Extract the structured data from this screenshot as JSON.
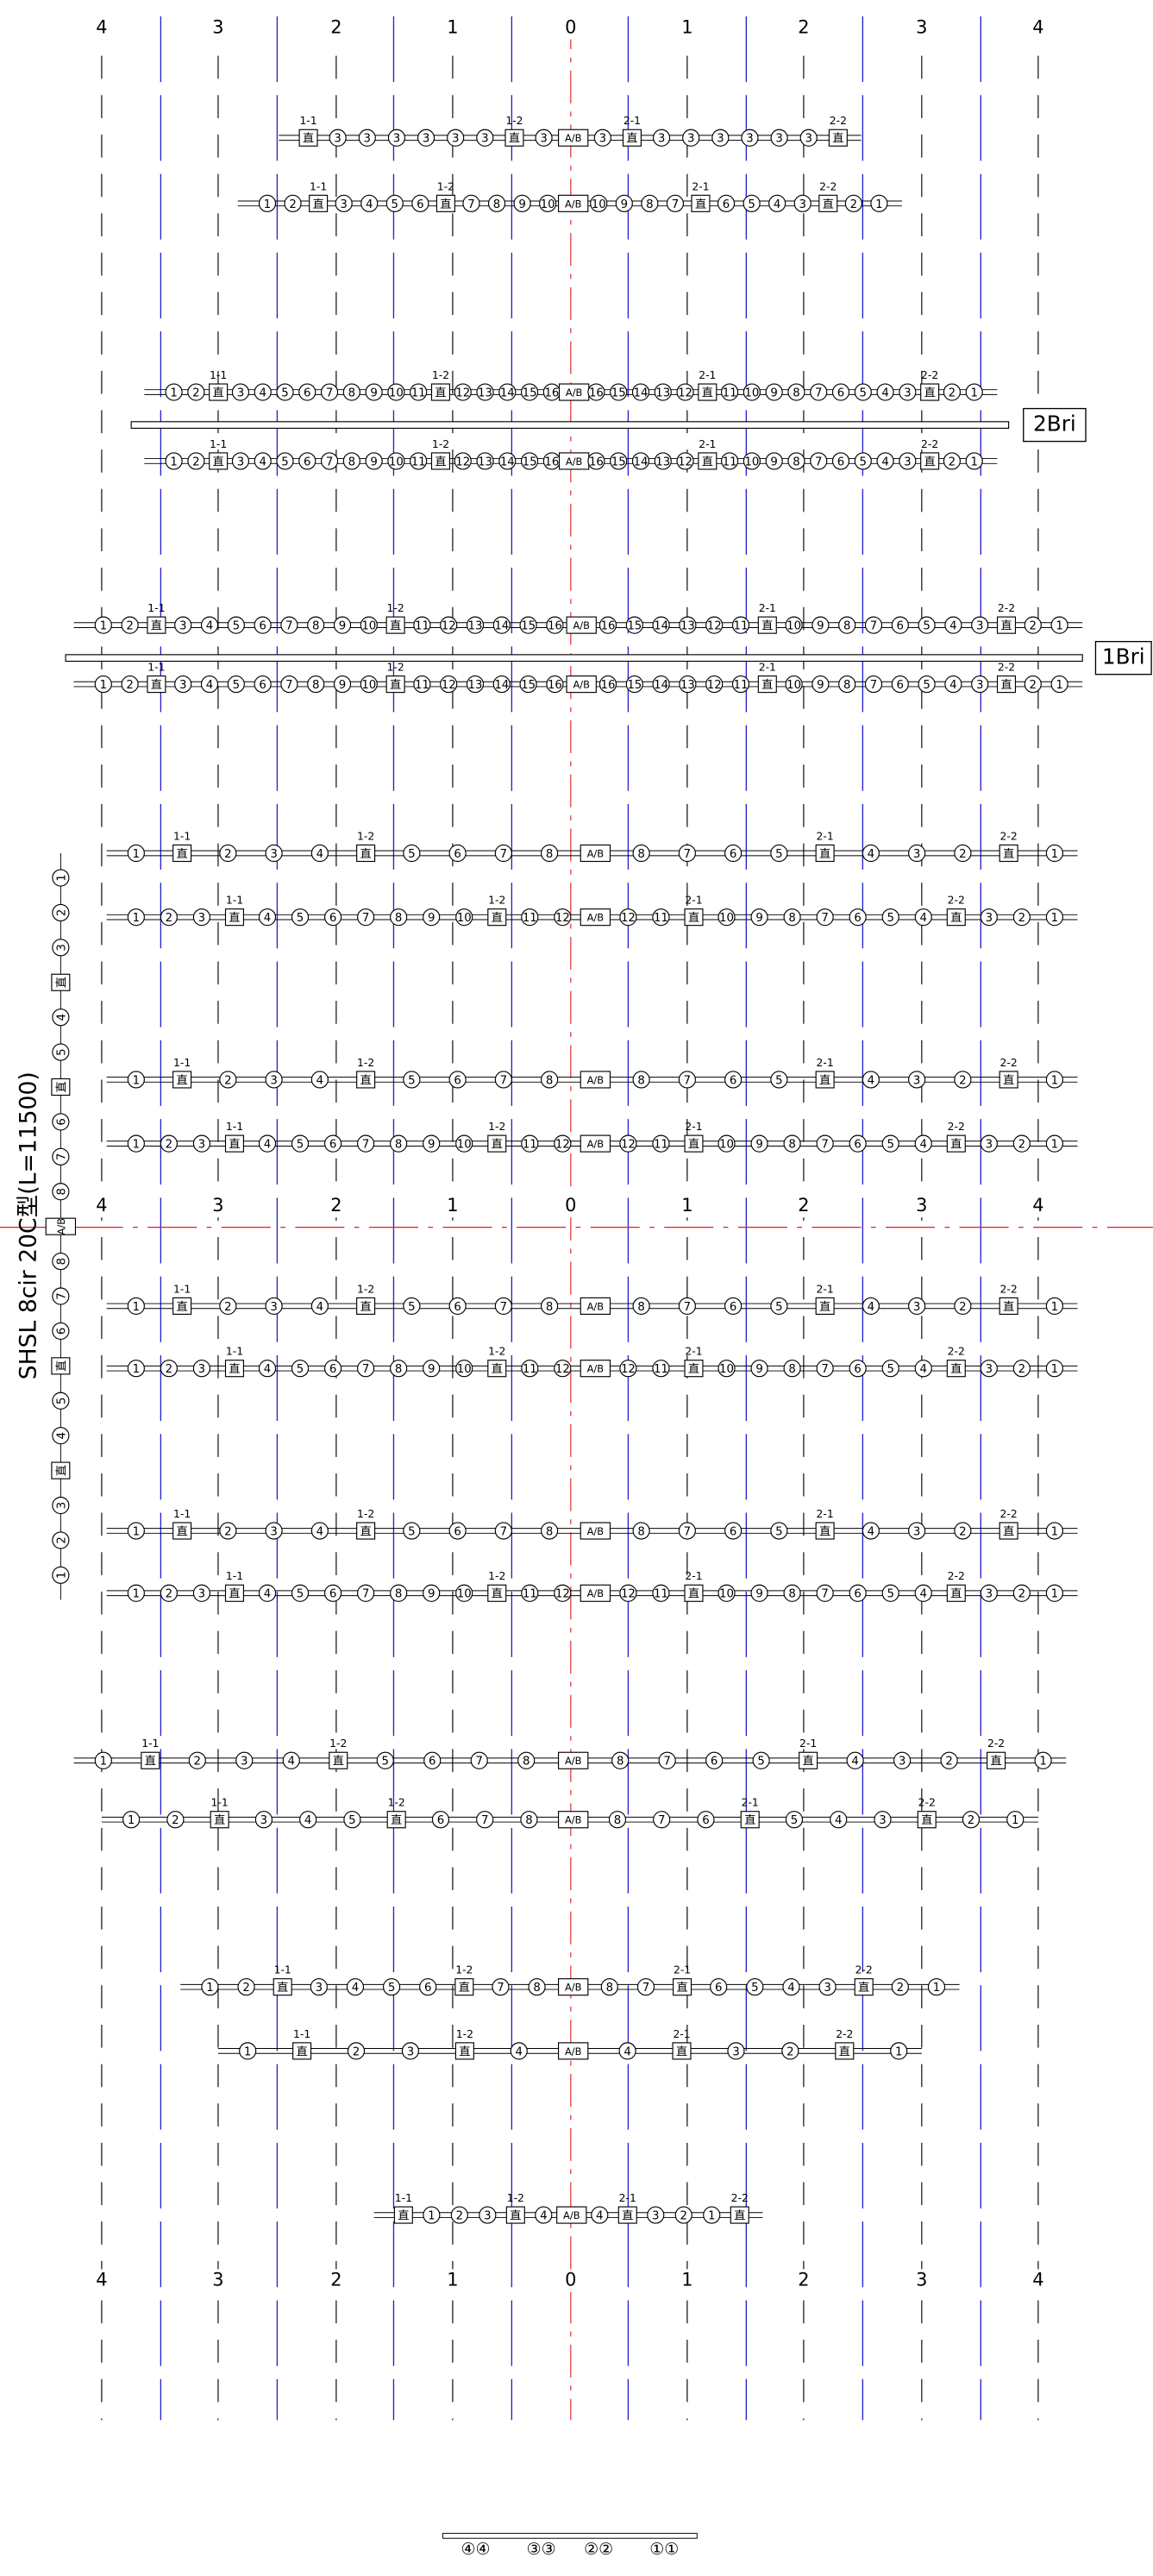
{
  "axis_labels": [
    "4",
    "3",
    "2",
    "1",
    "0",
    "1",
    "2",
    "3",
    "4"
  ],
  "title": "SHSL 8cir 20C型(L=11500)",
  "bridges": [
    "2Bri",
    "1Bri"
  ],
  "rows": [
    [
      {
        "label": "直",
        "tag": "1-1"
      },
      "3",
      "3",
      "3",
      "3",
      "3",
      "3",
      {
        "label": "直",
        "tag": "1-2"
      },
      "3",
      "A/B",
      "3",
      {
        "label": "直",
        "tag": "2-1"
      },
      "3",
      "3",
      "3",
      "3",
      "3",
      "3",
      {
        "label": "直",
        "tag": "2-2"
      }
    ],
    [
      "1",
      "2",
      {
        "label": "直",
        "tag": "1-1"
      },
      "3",
      "4",
      "5",
      "6",
      {
        "label": "直",
        "tag": "1-2"
      },
      "7",
      "8",
      "9",
      "10",
      "A/B",
      "10",
      "9",
      "8",
      "7",
      {
        "label": "直",
        "tag": "2-1"
      },
      "6",
      "5",
      "4",
      "3",
      {
        "label": "直",
        "tag": "2-2"
      },
      "2",
      "1"
    ],
    [
      "1",
      "2",
      {
        "label": "直",
        "tag": "1-1"
      },
      "3",
      "4",
      "5",
      "6",
      "7",
      "8",
      "9",
      "10",
      "11",
      {
        "label": "直",
        "tag": "1-2"
      },
      "12",
      "13",
      "14",
      "15",
      "16",
      "A/B",
      "16",
      "15",
      "14",
      "13",
      "12",
      {
        "label": "直",
        "tag": "2-1"
      },
      "11",
      "10",
      "9",
      "8",
      "7",
      "6",
      "5",
      "4",
      "3",
      {
        "label": "直",
        "tag": "2-2"
      },
      "2",
      "1"
    ],
    [
      "1",
      "2",
      {
        "label": "直",
        "tag": "1-1"
      },
      "3",
      "4",
      "5",
      "6",
      "7",
      "8",
      "9",
      "10",
      {
        "label": "直",
        "tag": "1-2"
      },
      "11",
      "12",
      "13",
      "14",
      "15",
      "16",
      "A/B",
      "16",
      "15",
      "14",
      "13",
      "12",
      "11",
      {
        "label": "直",
        "tag": "2-1"
      },
      "10",
      "9",
      "8",
      "7",
      "6",
      "5",
      "4",
      "3",
      {
        "label": "直",
        "tag": "2-2"
      },
      "2",
      "1"
    ],
    [
      "1",
      {
        "label": "直",
        "tag": "1-1"
      },
      "2",
      "3",
      "4",
      {
        "label": "直",
        "tag": "1-2"
      },
      "5",
      "6",
      "7",
      "8",
      "A/B",
      "8",
      "7",
      "6",
      "5",
      {
        "label": "直",
        "tag": "2-1"
      },
      "4",
      "3",
      "2",
      {
        "label": "直",
        "tag": "2-2"
      },
      "1"
    ],
    [
      "1",
      "2",
      "3",
      {
        "label": "直",
        "tag": "1-1"
      },
      "4",
      "5",
      "6",
      "7",
      "8",
      "9",
      "10",
      {
        "label": "直",
        "tag": "1-2"
      },
      "11",
      "12",
      "A/B",
      "12",
      "11",
      {
        "label": "直",
        "tag": "2-1"
      },
      "10",
      "9",
      "8",
      "7",
      "6",
      "5",
      "4",
      {
        "label": "直",
        "tag": "2-2"
      },
      "3",
      "2",
      "1"
    ],
    [
      "1",
      "2",
      {
        "label": "直",
        "tag": "1-1"
      },
      "3",
      "4",
      "5",
      {
        "label": "直",
        "tag": "1-2"
      },
      "6",
      "7",
      "8",
      "A/B",
      "8",
      "7",
      "6",
      {
        "label": "直",
        "tag": "2-1"
      },
      "5",
      "4",
      "3",
      {
        "label": "直",
        "tag": "2-2"
      },
      "2",
      "1"
    ],
    [
      "1",
      "2",
      {
        "label": "直",
        "tag": "1-1"
      },
      "3",
      "4",
      "5",
      "6",
      {
        "label": "直",
        "tag": "1-2"
      },
      "7",
      "8",
      "A/B",
      "8",
      "7",
      {
        "label": "直",
        "tag": "2-1"
      },
      "6",
      "5",
      "4",
      "3",
      {
        "label": "直",
        "tag": "2-2"
      },
      "2",
      "1"
    ],
    [
      "1",
      {
        "label": "直",
        "tag": "1-1"
      },
      "2",
      "3",
      {
        "label": "直",
        "tag": "1-2"
      },
      "4",
      "A/B",
      "4",
      {
        "label": "直",
        "tag": "2-1"
      },
      "3",
      "2",
      {
        "label": "直",
        "tag": "2-2"
      },
      "1"
    ],
    [
      {
        "label": "直",
        "tag": "1-1"
      },
      "1",
      "2",
      "3",
      {
        "label": "直",
        "tag": "1-2"
      },
      "4",
      "A/B",
      "4",
      {
        "label": "直",
        "tag": "2-1"
      },
      "3",
      "2",
      "1",
      {
        "label": "直",
        "tag": "2-2"
      }
    ]
  ],
  "side_row": [
    "1",
    "2",
    "3",
    "直",
    "4",
    "5",
    "直",
    "6",
    "7",
    "8",
    "A/B",
    "8",
    "7",
    "6",
    "直",
    "5",
    "4",
    "直",
    "3",
    "2",
    "1"
  ],
  "bottom_row": [
    "④④",
    "③③",
    "②②",
    "①①"
  ]
}
